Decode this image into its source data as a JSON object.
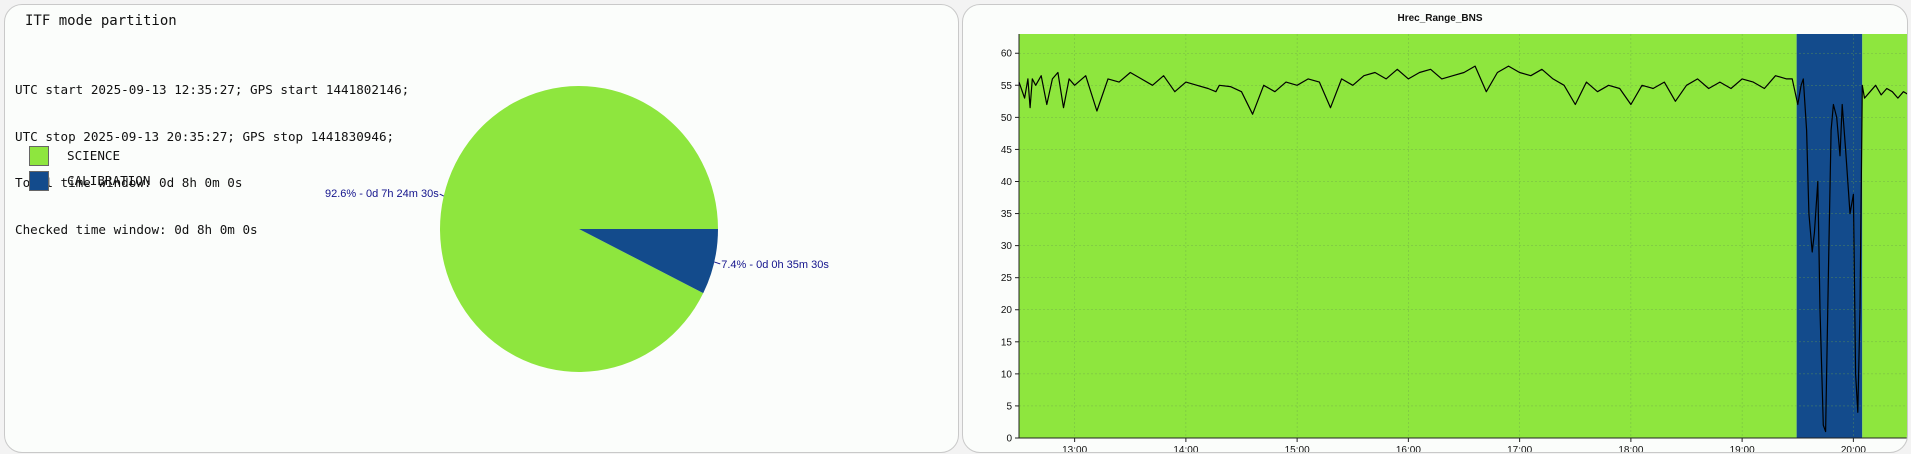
{
  "left": {
    "title": "ITF mode partition",
    "info_lines": [
      "UTC start 2025-09-13 12:35:27; GPS start 1441802146;",
      "UTC stop 2025-09-13 20:35:27; GPS stop 1441830946;",
      "Total time window: 0d 8h 0m 0s",
      "Checked time window: 0d 8h 0m 0s"
    ]
  },
  "chart_data": [
    {
      "type": "pie",
      "title": "ITF mode partition",
      "legend": [
        "SCIENCE",
        "CALIBRATION"
      ],
      "legend_position": "top-left",
      "slices": [
        {
          "name": "SCIENCE",
          "percent": 92.6,
          "label": "92.6% - 0d 7h 24m 30s",
          "color": "#8ee63e"
        },
        {
          "name": "CALIBRATION",
          "percent": 7.4,
          "label": "7.4% - 0d 0h 35m 30s",
          "color": "#134b8c"
        }
      ]
    },
    {
      "type": "line",
      "title": "Hrec_Range_BNS",
      "xlim": [
        12.5,
        20.5
      ],
      "ylim": [
        0,
        63
      ],
      "xticks": [
        13,
        14,
        15,
        16,
        17,
        18,
        19,
        20
      ],
      "xtick_labels": [
        "13:00",
        "14:00",
        "15:00",
        "16:00",
        "17:00",
        "18:00",
        "19:00",
        "20:00"
      ],
      "yticks": [
        0,
        5,
        10,
        15,
        20,
        25,
        30,
        35,
        40,
        45,
        50,
        55,
        60
      ],
      "ytick_labels": [
        "0",
        "5",
        "10",
        "15",
        "20",
        "25",
        "30",
        "35",
        "40",
        "45",
        "50",
        "55",
        "60"
      ],
      "grid": true,
      "bands": [
        {
          "name": "SCIENCE",
          "x0": 12.5,
          "x1": 19.49,
          "color": "#8ee63e"
        },
        {
          "name": "CALIBRATION",
          "x0": 19.49,
          "x1": 20.08,
          "color": "#134b8c"
        },
        {
          "name": "SCIENCE",
          "x0": 20.08,
          "x1": 20.5,
          "color": "#8ee63e"
        }
      ],
      "series": [
        {
          "color": "#000000",
          "x": [
            12.5,
            12.55,
            12.58,
            12.6,
            12.62,
            12.65,
            12.7,
            12.75,
            12.8,
            12.85,
            12.9,
            12.95,
            13.0,
            13.1,
            13.2,
            13.3,
            13.4,
            13.5,
            13.6,
            13.7,
            13.8,
            13.9,
            14.0,
            14.1,
            14.2,
            14.27,
            14.3,
            14.4,
            14.5,
            14.6,
            14.7,
            14.8,
            14.9,
            15.0,
            15.1,
            15.2,
            15.3,
            15.4,
            15.5,
            15.6,
            15.7,
            15.8,
            15.9,
            16.0,
            16.1,
            16.2,
            16.3,
            16.4,
            16.5,
            16.6,
            16.7,
            16.8,
            16.9,
            17.0,
            17.1,
            17.2,
            17.3,
            17.4,
            17.5,
            17.6,
            17.7,
            17.8,
            17.9,
            18.0,
            18.1,
            18.2,
            18.3,
            18.4,
            18.5,
            18.6,
            18.7,
            18.8,
            18.9,
            19.0,
            19.1,
            19.2,
            19.3,
            19.4,
            19.45,
            19.5,
            19.53,
            19.55,
            19.58,
            19.6,
            19.63,
            19.65,
            19.68,
            19.7,
            19.73,
            19.75,
            19.78,
            19.8,
            19.82,
            19.85,
            19.88,
            19.9,
            19.93,
            19.95,
            19.97,
            20.0,
            20.02,
            20.04,
            20.06,
            20.08,
            20.1,
            20.15,
            20.2,
            20.25,
            20.3,
            20.35,
            20.4,
            20.45,
            20.5
          ],
          "y": [
            55.5,
            53,
            56,
            51.5,
            56,
            55,
            56.5,
            52,
            56,
            57,
            51.5,
            56,
            55,
            56.5,
            51,
            56,
            55.5,
            57,
            56,
            55,
            56.5,
            54,
            55.5,
            55,
            54.5,
            54,
            55,
            54.8,
            54,
            50.5,
            55,
            54,
            55.5,
            55,
            56,
            55.5,
            51.5,
            56,
            55,
            56.5,
            57,
            56,
            57.5,
            56,
            57,
            57.5,
            56,
            56.5,
            57,
            58,
            54,
            57,
            58,
            57,
            56.5,
            57.5,
            56,
            55,
            52,
            55.5,
            54,
            55,
            54.5,
            52,
            55,
            54.5,
            55.5,
            52.5,
            55,
            56,
            54.5,
            55.5,
            54.5,
            56,
            55.5,
            54.5,
            56.5,
            56,
            56,
            52,
            55,
            56,
            48,
            35,
            29,
            32,
            40,
            20,
            2,
            1,
            30,
            48,
            52,
            50,
            44,
            52,
            45,
            40,
            35,
            38,
            10,
            4,
            20,
            55,
            53,
            54,
            55,
            53.5,
            54.5,
            54,
            53,
            54,
            53.5
          ]
        }
      ]
    }
  ]
}
